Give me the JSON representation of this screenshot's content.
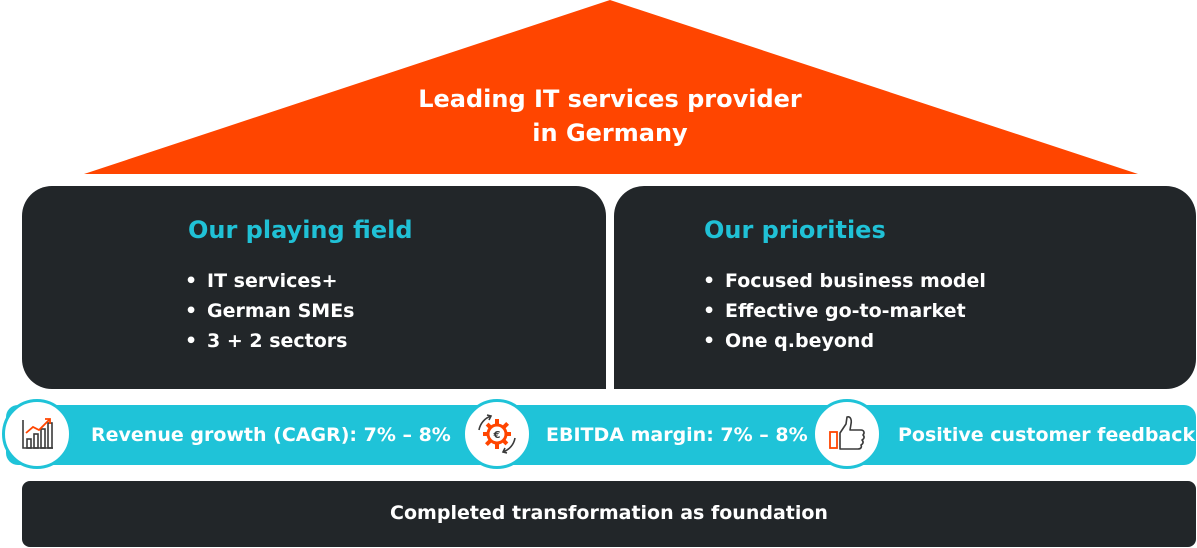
{
  "roof": {
    "title_line1": "Leading IT services provider",
    "title_line2": "in Germany",
    "color": "#ff4500"
  },
  "playing_field": {
    "heading": "Our playing field",
    "items": [
      "IT services+",
      "German SMEs",
      "3 + 2 sectors"
    ]
  },
  "priorities": {
    "heading": "Our priorities",
    "items": [
      "Focused business model",
      "Effective go-to-market",
      "One q.beyond"
    ]
  },
  "kpis": [
    {
      "label": "Revenue growth (CAGR): 7% – 8%",
      "icon": "growth-chart-icon"
    },
    {
      "label": "EBITDA margin: 7% – 8%",
      "icon": "euro-gear-icon"
    },
    {
      "label": "Positive customer feedback",
      "icon": "thumbs-up-icon"
    }
  ],
  "foundation": {
    "label": "Completed transformation as foundation"
  },
  "colors": {
    "accent_orange": "#ff4500",
    "accent_cyan": "#1fc3d8",
    "dark": "#222629"
  }
}
